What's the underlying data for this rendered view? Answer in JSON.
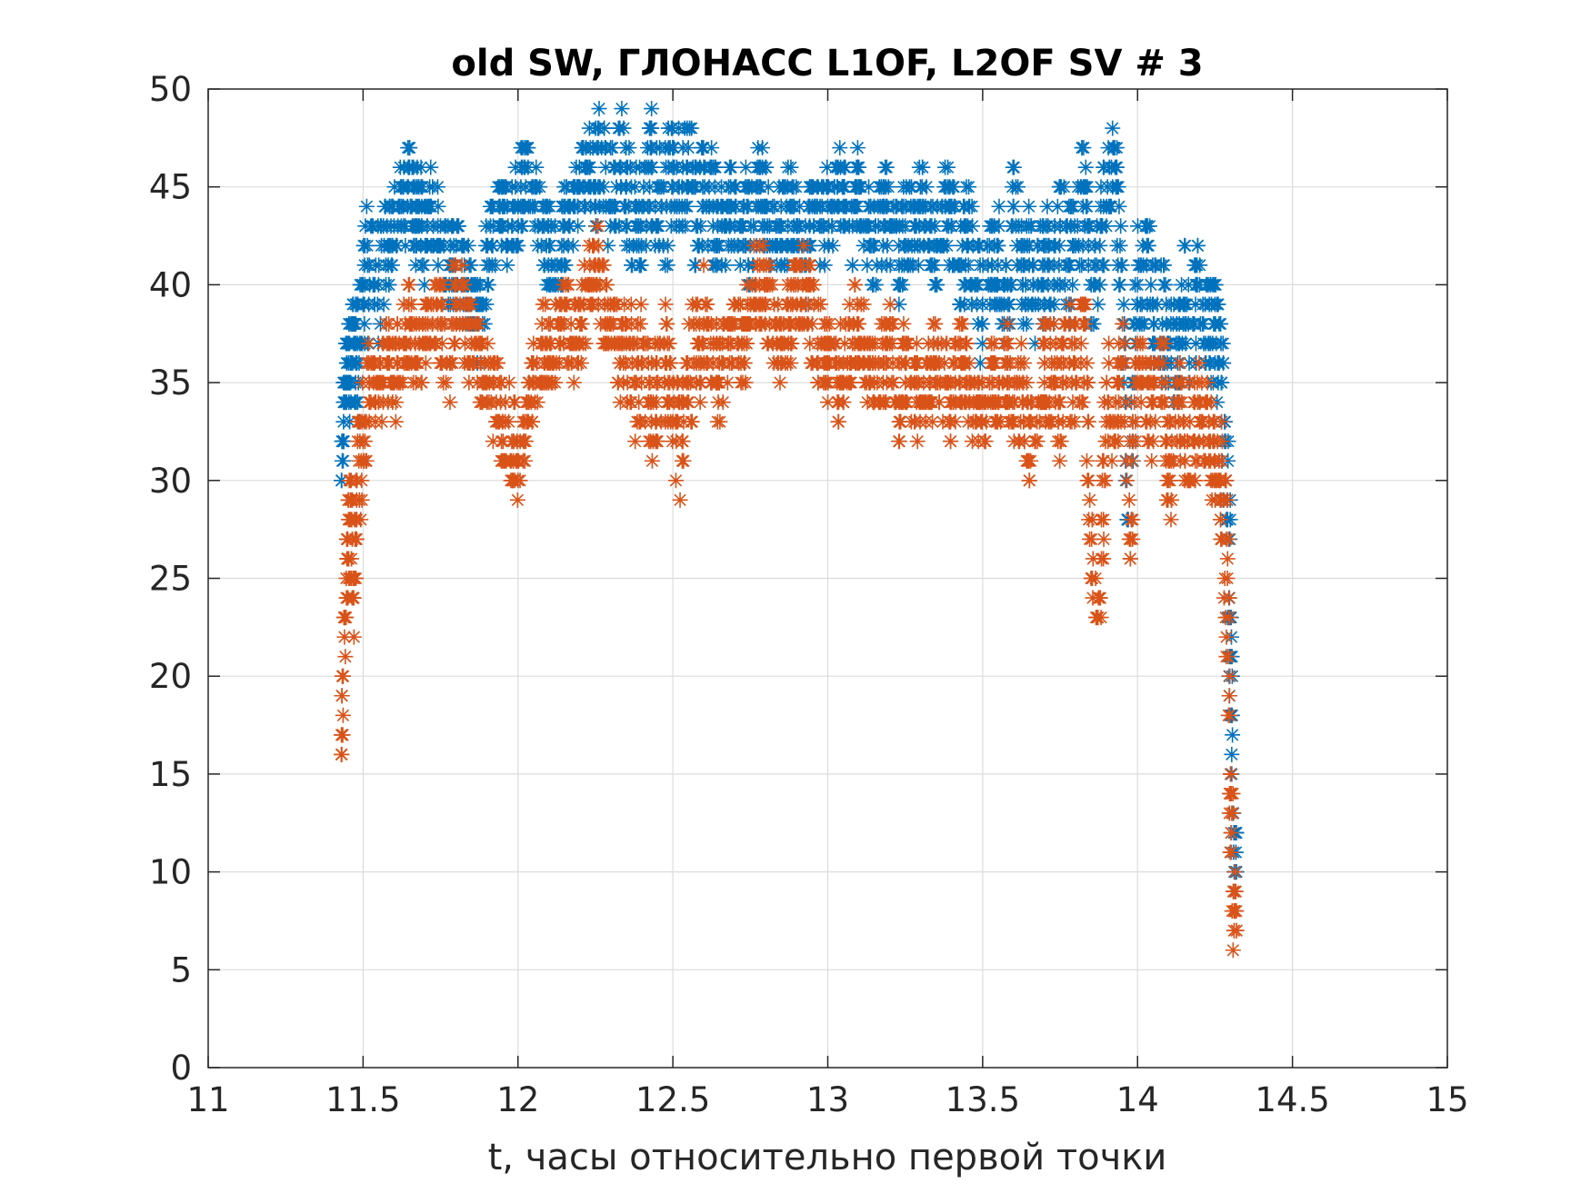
{
  "chart_data": {
    "type": "scatter",
    "title": "old SW, ГЛОНАСС L1OF, L2OF SV # 3",
    "xlabel": "t, часы относительно первой точки",
    "ylabel": "",
    "xlim": [
      11,
      15
    ],
    "ylim": [
      0,
      50
    ],
    "xticks": [
      11,
      11.5,
      12,
      12.5,
      13,
      13.5,
      14,
      14.5,
      15
    ],
    "xtick_labels": [
      "11",
      "11.5",
      "12",
      "12.5",
      "13",
      "13.5",
      "14",
      "14.5",
      "15"
    ],
    "yticks": [
      0,
      5,
      10,
      15,
      20,
      25,
      30,
      35,
      40,
      45,
      50
    ],
    "ytick_labels": [
      "0",
      "5",
      "10",
      "15",
      "20",
      "25",
      "30",
      "35",
      "40",
      "45",
      "50"
    ],
    "grid": true,
    "marker": "asterisk",
    "series": [
      {
        "name": "L1OF",
        "color": "#0072BD",
        "x": [
          11.43,
          11.44,
          11.45,
          11.46,
          11.47,
          11.48,
          11.5,
          11.52,
          11.55,
          11.58,
          11.6,
          11.63,
          11.65,
          11.67,
          11.68,
          11.7,
          11.72,
          11.75,
          11.78,
          11.8,
          11.83,
          11.85,
          11.87,
          11.9,
          11.92,
          11.95,
          11.98,
          12.0,
          12.02,
          12.05,
          12.08,
          12.1,
          12.13,
          12.15,
          12.18,
          12.2,
          12.23,
          12.25,
          12.27,
          12.3,
          12.33,
          12.35,
          12.38,
          12.4,
          12.43,
          12.45,
          12.48,
          12.5,
          12.53,
          12.55,
          12.58,
          12.6,
          12.63,
          12.65,
          12.68,
          12.7,
          12.73,
          12.75,
          12.78,
          12.8,
          12.83,
          12.85,
          12.88,
          12.9,
          12.93,
          12.95,
          12.98,
          13.0,
          13.03,
          13.05,
          13.08,
          13.1,
          13.13,
          13.15,
          13.18,
          13.2,
          13.23,
          13.25,
          13.28,
          13.3,
          13.33,
          13.35,
          13.38,
          13.4,
          13.43,
          13.45,
          13.48,
          13.5,
          13.53,
          13.55,
          13.58,
          13.6,
          13.63,
          13.65,
          13.68,
          13.7,
          13.73,
          13.75,
          13.78,
          13.8,
          13.83,
          13.85,
          13.88,
          13.9,
          13.93,
          13.95,
          13.97,
          14.0,
          14.03,
          14.05,
          14.08,
          14.1,
          14.13,
          14.15,
          14.18,
          14.2,
          14.23,
          14.25,
          14.27,
          14.29,
          14.3,
          14.31
        ],
        "y": [
          30,
          34,
          37,
          35,
          38,
          36,
          39,
          41,
          40,
          42,
          43,
          44,
          46,
          43,
          45,
          42,
          44,
          43,
          41,
          42,
          40,
          39,
          38,
          41,
          43,
          44,
          43,
          44,
          46,
          45,
          43,
          42,
          40,
          43,
          44,
          45,
          46,
          45,
          47,
          44,
          46,
          45,
          43,
          44,
          46,
          45,
          44,
          46,
          45,
          47,
          43,
          46,
          44,
          42,
          45,
          43,
          44,
          42,
          45,
          44,
          42,
          43,
          44,
          43,
          41,
          44,
          43,
          44,
          45,
          44,
          43,
          45,
          43,
          42,
          44,
          43,
          41,
          43,
          42,
          44,
          43,
          42,
          44,
          43,
          41,
          42,
          40,
          39,
          41,
          42,
          38,
          44,
          40,
          41,
          39,
          42,
          40,
          43,
          41,
          42,
          45,
          40,
          43,
          44,
          45,
          41,
          28,
          40,
          41,
          39,
          38,
          37,
          36,
          39,
          38,
          40,
          37,
          38,
          35,
          29,
          23,
          11
        ],
        "noise": [
          3,
          3,
          3,
          4,
          4,
          5,
          5,
          4,
          4,
          3,
          3,
          3,
          3,
          3,
          3,
          3,
          3,
          3,
          3,
          3,
          3,
          3,
          3,
          3,
          3,
          3,
          3,
          3,
          3,
          3,
          3,
          3,
          3,
          3,
          3,
          3,
          3,
          4,
          4,
          4,
          4,
          4,
          4,
          4,
          4,
          4,
          4,
          4,
          4,
          4,
          4,
          4,
          4,
          4,
          3,
          3,
          3,
          3,
          3,
          3,
          3,
          3,
          3,
          3,
          3,
          3,
          3,
          3,
          3,
          3,
          3,
          3,
          3,
          3,
          3,
          3,
          3,
          3,
          3,
          3,
          3,
          3,
          3,
          3,
          4,
          4,
          4,
          4,
          4,
          4,
          4,
          4,
          4,
          4,
          4,
          4,
          4,
          4,
          4,
          4,
          4,
          4,
          4,
          4,
          4,
          4,
          4,
          4,
          4,
          4,
          4,
          4,
          4,
          4,
          4,
          4,
          4,
          4,
          6,
          8,
          6,
          2
        ]
      },
      {
        "name": "L2OF",
        "color": "#D95319",
        "x": [
          11.43,
          11.44,
          11.45,
          11.46,
          11.47,
          11.48,
          11.5,
          11.52,
          11.55,
          11.58,
          11.6,
          11.63,
          11.65,
          11.67,
          11.7,
          11.72,
          11.75,
          11.78,
          11.8,
          11.83,
          11.85,
          11.88,
          11.9,
          11.93,
          11.95,
          11.98,
          12.0,
          12.03,
          12.05,
          12.08,
          12.1,
          12.13,
          12.15,
          12.18,
          12.2,
          12.23,
          12.25,
          12.28,
          12.3,
          12.33,
          12.35,
          12.38,
          12.4,
          12.43,
          12.45,
          12.48,
          12.5,
          12.53,
          12.55,
          12.58,
          12.6,
          12.63,
          12.65,
          12.68,
          12.7,
          12.73,
          12.75,
          12.78,
          12.8,
          12.83,
          12.85,
          12.88,
          12.9,
          12.93,
          12.95,
          12.98,
          13.0,
          13.03,
          13.05,
          13.08,
          13.1,
          13.13,
          13.15,
          13.18,
          13.2,
          13.23,
          13.25,
          13.28,
          13.3,
          13.33,
          13.35,
          13.38,
          13.4,
          13.43,
          13.45,
          13.48,
          13.5,
          13.53,
          13.55,
          13.58,
          13.6,
          13.63,
          13.65,
          13.68,
          13.7,
          13.73,
          13.75,
          13.78,
          13.8,
          13.83,
          13.85,
          13.88,
          13.9,
          13.93,
          13.95,
          13.98,
          14.0,
          14.03,
          14.05,
          14.08,
          14.1,
          14.13,
          14.15,
          14.18,
          14.2,
          14.23,
          14.25,
          14.27,
          14.29,
          14.3,
          14.31
        ],
        "y": [
          17,
          22,
          26,
          28,
          24,
          30,
          32,
          35,
          34,
          36,
          35,
          37,
          38,
          36,
          37,
          39,
          38,
          36,
          40,
          38,
          37,
          36,
          35,
          34,
          33,
          32,
          31,
          33,
          35,
          37,
          36,
          38,
          39,
          37,
          38,
          40,
          41,
          39,
          38,
          36,
          37,
          35,
          36,
          34,
          35,
          36,
          33,
          32,
          35,
          37,
          38,
          36,
          35,
          37,
          38,
          37,
          39,
          40,
          39,
          38,
          37,
          38,
          39,
          40,
          38,
          37,
          36,
          35,
          36,
          37,
          38,
          36,
          35,
          36,
          37,
          34,
          36,
          35,
          34,
          35,
          36,
          35,
          34,
          36,
          35,
          33,
          34,
          35,
          34,
          36,
          33,
          35,
          31,
          34,
          36,
          35,
          34,
          36,
          35,
          38,
          25,
          24,
          35,
          34,
          36,
          28,
          37,
          33,
          34,
          36,
          30,
          34,
          33,
          32,
          34,
          33,
          31,
          29,
          25,
          15,
          9
        ],
        "noise": [
          3,
          3,
          4,
          4,
          4,
          4,
          4,
          3,
          3,
          3,
          3,
          3,
          3,
          3,
          3,
          3,
          3,
          3,
          3,
          3,
          3,
          3,
          3,
          3,
          3,
          3,
          3,
          3,
          3,
          3,
          3,
          3,
          3,
          3,
          3,
          3,
          3,
          3,
          3,
          3,
          4,
          4,
          4,
          4,
          4,
          4,
          4,
          4,
          4,
          4,
          3,
          3,
          3,
          3,
          3,
          3,
          3,
          3,
          3,
          3,
          3,
          3,
          3,
          3,
          3,
          3,
          3,
          3,
          3,
          3,
          3,
          3,
          3,
          3,
          3,
          3,
          3,
          3,
          3,
          3,
          3,
          3,
          3,
          3,
          3,
          3,
          3,
          3,
          3,
          3,
          3,
          3,
          3,
          3,
          4,
          4,
          4,
          4,
          4,
          4,
          4,
          4,
          4,
          4,
          4,
          4,
          4,
          4,
          4,
          4,
          4,
          4,
          4,
          4,
          4,
          4,
          4,
          6,
          8,
          6,
          3
        ]
      }
    ]
  }
}
